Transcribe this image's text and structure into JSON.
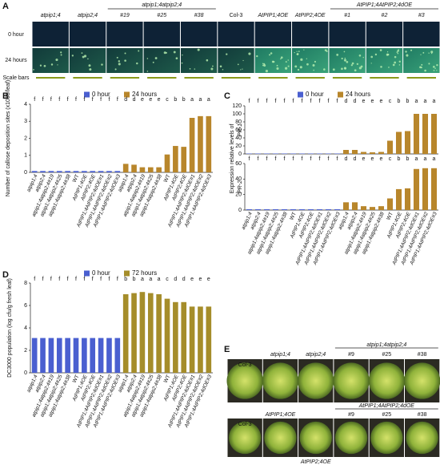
{
  "panels": {
    "a": {
      "label": "A",
      "groups": [
        "atpip1;4atpip2;4",
        "AtPIP1;4AtPIP2;4dOE"
      ],
      "columns": [
        "atpip1;4",
        "atpip2;4",
        "#19",
        "#25",
        "#38",
        "Col-3",
        "AtPIP1;4OE",
        "AtPIP2;4OE",
        "#1",
        "#2",
        "#3"
      ],
      "rows": [
        "0 hour",
        "24 hours",
        "Scale bars"
      ]
    },
    "e": {
      "label": "E",
      "top": [
        "Col-3",
        "atpip1;4",
        "atpip2;4",
        "#9",
        "#25",
        "#38"
      ],
      "top_group": "atpip1;4atpip2;4",
      "bottom": [
        "Col-3",
        "AtPIP1;4OE",
        "AtPIP2;4OE",
        "#9",
        "#25",
        "#38"
      ],
      "bottom_group": "AtPIP1;4AtPIP2;4dOE"
    }
  },
  "chart_data": [
    {
      "type": "bar",
      "panel": "B",
      "ylabel": "Number of callose deposition sites (x1000/leaf)",
      "categories": [
        "atpip1;4",
        "atpip2;4",
        "atpip1;4atpip2;4#19",
        "atpip1;4atpip2;4#25",
        "atpip1;4atpip2;4#38",
        "WT",
        "AtPIP1;4OE",
        "AtPIP2;4OE",
        "AtPIP1;4AtPIP2;4dOE#1",
        "AtPIP1;4AtPIP2;4dOE#2",
        "AtPIP1;4AtPIP2;4dOE#3",
        "atpip1;4",
        "atpip2;4",
        "atpip1;4atpip2;4#19",
        "atpip1;4atpip2;4#25",
        "atpip1;4atpip2;4#38",
        "WT",
        "AtPIP1;4OE",
        "AtPIP2;4OE",
        "AtPIP1;4AtPIP2;4dOE#1",
        "AtPIP1;4AtPIP2;4dOE#2",
        "AtPIP1;4AtPIP2;4dOE#3"
      ],
      "series": [
        {
          "name": "0 hour",
          "color": "#4a5fd0",
          "values": [
            0.08,
            0.08,
            0.08,
            0.08,
            0.08,
            0.08,
            0.08,
            0.08,
            0.08,
            0.08,
            0.08,
            null,
            null,
            null,
            null,
            null,
            null,
            null,
            null,
            null,
            null,
            null
          ]
        },
        {
          "name": "24 hours",
          "color": "#b8862b",
          "values": [
            null,
            null,
            null,
            null,
            null,
            null,
            null,
            null,
            null,
            null,
            null,
            0.5,
            0.45,
            0.3,
            0.3,
            0.3,
            1.05,
            1.55,
            1.5,
            3.2,
            3.3,
            3.3
          ]
        }
      ],
      "letters": [
        "f",
        "f",
        "f",
        "f",
        "f",
        "f",
        "f",
        "f",
        "f",
        "f",
        "f",
        "d",
        "d",
        "e",
        "e",
        "e",
        "c",
        "b",
        "b",
        "a",
        "a",
        "a"
      ],
      "ylim": [
        0,
        4
      ],
      "yticks": [
        0,
        1,
        2,
        3,
        4
      ]
    },
    {
      "type": "bar",
      "panel": "C",
      "ylabel": "PR-1",
      "series": [
        {
          "name": "0 hour",
          "color": "#4a5fd0",
          "values": [
            1,
            1,
            1,
            1,
            1,
            1,
            1,
            1,
            1,
            1,
            1,
            null,
            null,
            null,
            null,
            null,
            null,
            null,
            null,
            null,
            null,
            null
          ]
        },
        {
          "name": "24 hours",
          "color": "#b8862b",
          "values": [
            null,
            null,
            null,
            null,
            null,
            null,
            null,
            null,
            null,
            null,
            null,
            10,
            10,
            5,
            4,
            5,
            33,
            55,
            57,
            100,
            100,
            100
          ]
        }
      ],
      "letters": [
        "f",
        "f",
        "f",
        "f",
        "f",
        "f",
        "f",
        "f",
        "f",
        "f",
        "f",
        "d",
        "d",
        "e",
        "e",
        "e",
        "c",
        "b",
        "b",
        "a",
        "a",
        "a"
      ],
      "ylim": [
        0,
        120
      ],
      "yticks": [
        0,
        20,
        40,
        60,
        80,
        100,
        120
      ]
    },
    {
      "type": "bar",
      "ylabel": "PR-2",
      "shared_label": "Expression relative levels of",
      "categories": [
        "atpip1;4",
        "atpip2;4",
        "atpip1;4atpip2;4#19",
        "atpip1;4atpip2;4#25",
        "atpip1;4atpip2;4#38",
        "WT",
        "AtPIP1;4OE",
        "AtPIP2;4OE",
        "AtPIP1;4AtPIP2;4dOE#1",
        "AtPIP1;4AtPIP2;4dOE#2",
        "AtPIP1;4AtPIP2;4dOE#3",
        "atpip1;4",
        "atpip2;4",
        "atpip1;4atpip2;4#19",
        "atpip1;4atpip2;4#25",
        "atpip1;4atpip2;4#38",
        "WT",
        "AtPIP1;4OE",
        "AtPIP2;4OE",
        "AtPIP1;4AtPIP2;4dOE#1",
        "AtPIP1;4AtPIP2;4dOE#2",
        "AtPIP1;4AtPIP2;4dOE#3"
      ],
      "series": [
        {
          "color": "#4a5fd0",
          "values": [
            1,
            1,
            1,
            1,
            1,
            1,
            1,
            1,
            1,
            1,
            1,
            null,
            null,
            null,
            null,
            null,
            null,
            null,
            null,
            null,
            null,
            null
          ]
        },
        {
          "color": "#b8862b",
          "values": [
            null,
            null,
            null,
            null,
            null,
            null,
            null,
            null,
            null,
            null,
            null,
            10,
            10,
            5,
            4,
            5,
            15,
            27,
            28,
            53,
            54,
            54
          ]
        }
      ],
      "letters": [
        "f",
        "f",
        "f",
        "f",
        "f",
        "f",
        "f",
        "f",
        "f",
        "f",
        "f",
        "d",
        "d",
        "e",
        "e",
        "e",
        "c",
        "b",
        "b",
        "a",
        "a",
        "a"
      ],
      "ylim": [
        0,
        60
      ],
      "yticks": [
        0,
        20,
        40,
        60
      ]
    },
    {
      "type": "bar",
      "panel": "D",
      "ylabel": "DC3000 population (log cfu/g fresh leaf)",
      "categories": [
        "atpip1;4",
        "atpip2;4",
        "atpip1;4atpip2;4#19",
        "atpip1;4atpip2;4#25",
        "atpip1;4atpip2;4#38",
        "WT",
        "AtPIP1;4OE",
        "AtPIP2;4OE",
        "AtPIP1;4AtPIP2;4dOE#1",
        "AtPIP1;4AtPIP2;4dOE#2",
        "AtPIP1;4AtPIP2;4dOE#3",
        "atpip1;4",
        "atpip2;4",
        "atpip1;4atpip2;4#19",
        "atpip1;4atpip2;4#25",
        "atpip1;4atpip2;4#38",
        "WT",
        "AtPIP1;4OE",
        "AtPIP2;4OE",
        "AtPIP1;4AtPIP2;4dOE#1",
        "AtPIP1;4AtPIP2;4dOE#2",
        "AtPIP1;4AtPIP2;4dOE#3"
      ],
      "series": [
        {
          "name": "0 hour",
          "color": "#4a5fd0",
          "values": [
            3.1,
            3.1,
            3.1,
            3.1,
            3.1,
            3.1,
            3.1,
            3.1,
            3.1,
            3.1,
            3.1,
            null,
            null,
            null,
            null,
            null,
            null,
            null,
            null,
            null,
            null,
            null
          ]
        },
        {
          "name": "72 hours",
          "color": "#a58d2a",
          "values": [
            null,
            null,
            null,
            null,
            null,
            null,
            null,
            null,
            null,
            null,
            null,
            7.0,
            7.1,
            7.2,
            7.1,
            7.0,
            6.6,
            6.3,
            6.3,
            5.9,
            5.9,
            5.9
          ]
        }
      ],
      "letters": [
        "f",
        "f",
        "f",
        "f",
        "f",
        "f",
        "f",
        "f",
        "f",
        "f",
        "f",
        "b",
        "b",
        "a",
        "a",
        "a",
        "c",
        "d",
        "d",
        "e",
        "e",
        "e"
      ],
      "ylim": [
        0,
        8
      ],
      "yticks": [
        0,
        2,
        4,
        6,
        8
      ]
    }
  ]
}
